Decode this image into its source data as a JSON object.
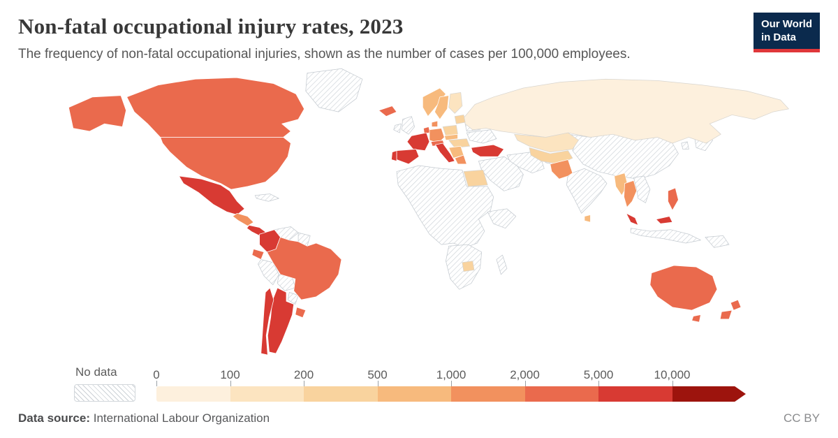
{
  "header": {
    "title": "Non-fatal occupational injury rates, 2023",
    "subtitle": "The frequency of non-fatal occupational injuries, shown as the number of cases per 100,000 employees.",
    "logo": {
      "line1": "Our World",
      "line2": "in Data",
      "bg": "#0b2a4d",
      "accent": "#e0373a"
    }
  },
  "legend": {
    "no_data_label": "No data",
    "ticks": [
      "0",
      "100",
      "200",
      "500",
      "1,000",
      "2,000",
      "5,000",
      "10,000"
    ]
  },
  "footer": {
    "source_label": "Data source:",
    "source_value": "International Labour Organization",
    "license": "CC BY"
  },
  "chart_data": {
    "type": "choropleth",
    "title": "Non-fatal occupational injury rates, 2023",
    "unit": "cases per 100,000 employees",
    "year": 2023,
    "legend_position": "bottom",
    "scale_ticks": [
      0,
      100,
      200,
      500,
      1000,
      2000,
      5000,
      10000
    ],
    "bins": [
      {
        "label": "0–100",
        "color": "#fdf0dd"
      },
      {
        "label": "100–200",
        "color": "#fce4c0"
      },
      {
        "label": "200–500",
        "color": "#f9d39e"
      },
      {
        "label": "500–1,000",
        "color": "#f7ba7d"
      },
      {
        "label": "1,000–2,000",
        "color": "#f2915e"
      },
      {
        "label": "2,000–5,000",
        "color": "#ea6a4d"
      },
      {
        "label": "5,000–10,000",
        "color": "#d83a33"
      },
      {
        "label": "10,000+",
        "color": "#9d140d"
      }
    ],
    "no_data": {
      "label": "No data",
      "pattern": "diagonal-hatch"
    },
    "regions": [
      {
        "key": "canada",
        "name": "Canada",
        "bin": 5
      },
      {
        "key": "united-states",
        "name": "United States",
        "bin": 5
      },
      {
        "key": "greenland",
        "name": "Greenland",
        "bin": null
      },
      {
        "key": "mexico",
        "name": "Mexico",
        "bin": 6
      },
      {
        "key": "central-america",
        "name": "Guatemala to Nicaragua",
        "bin": 4
      },
      {
        "key": "costa-rica-panama",
        "name": "Costa Rica & Panama",
        "bin": 6
      },
      {
        "key": "cuba",
        "name": "Cuba",
        "bin": null
      },
      {
        "key": "colombia",
        "name": "Colombia",
        "bin": 6
      },
      {
        "key": "venezuela",
        "name": "Venezuela",
        "bin": null
      },
      {
        "key": "guyanas",
        "name": "Guyanas",
        "bin": null
      },
      {
        "key": "ecuador",
        "name": "Ecuador",
        "bin": 5
      },
      {
        "key": "peru",
        "name": "Peru",
        "bin": null
      },
      {
        "key": "bolivia",
        "name": "Bolivia",
        "bin": null
      },
      {
        "key": "brazil",
        "name": "Brazil",
        "bin": 5
      },
      {
        "key": "paraguay",
        "name": "Paraguay",
        "bin": null
      },
      {
        "key": "uruguay",
        "name": "Uruguay",
        "bin": 5
      },
      {
        "key": "argentina",
        "name": "Argentina",
        "bin": 6
      },
      {
        "key": "chile",
        "name": "Chile",
        "bin": 6
      },
      {
        "key": "iceland",
        "name": "Iceland",
        "bin": 5
      },
      {
        "key": "united-kingdom",
        "name": "United Kingdom",
        "bin": null
      },
      {
        "key": "ireland",
        "name": "Ireland",
        "bin": null
      },
      {
        "key": "norway",
        "name": "Norway",
        "bin": 3
      },
      {
        "key": "sweden",
        "name": "Sweden",
        "bin": 3
      },
      {
        "key": "finland",
        "name": "Finland",
        "bin": 1
      },
      {
        "key": "denmark",
        "name": "Denmark",
        "bin": 4
      },
      {
        "key": "benelux",
        "name": "Benelux",
        "bin": 5
      },
      {
        "key": "germany",
        "name": "Germany",
        "bin": 4
      },
      {
        "key": "france",
        "name": "France",
        "bin": 6
      },
      {
        "key": "spain",
        "name": "Spain",
        "bin": 6
      },
      {
        "key": "portugal",
        "name": "Portugal",
        "bin": 6
      },
      {
        "key": "italy",
        "name": "Italy",
        "bin": 6
      },
      {
        "key": "alpine",
        "name": "Switzerland & Austria",
        "bin": 5
      },
      {
        "key": "poland",
        "name": "Poland",
        "bin": 2
      },
      {
        "key": "czech-slovakia",
        "name": "Czechia & Slovakia",
        "bin": 3
      },
      {
        "key": "hungary-romania",
        "name": "Hungary & Romania",
        "bin": 2
      },
      {
        "key": "balkans",
        "name": "Balkans",
        "bin": 3
      },
      {
        "key": "greece",
        "name": "Greece",
        "bin": 4
      },
      {
        "key": "baltics",
        "name": "Baltic states",
        "bin": 2
      },
      {
        "key": "belarus",
        "name": "Belarus",
        "bin": null
      },
      {
        "key": "ukraine",
        "name": "Ukraine",
        "bin": null
      },
      {
        "key": "russia",
        "name": "Russia",
        "bin": 0
      },
      {
        "key": "kazakhstan",
        "name": "Kazakhstan",
        "bin": 1
      },
      {
        "key": "central-asia",
        "name": "Central Asia",
        "bin": 2
      },
      {
        "key": "turkey",
        "name": "Turkey",
        "bin": 6
      },
      {
        "key": "middle-east",
        "name": "Middle East",
        "bin": null
      },
      {
        "key": "iran",
        "name": "Iran",
        "bin": null
      },
      {
        "key": "afghanistan",
        "name": "Afghanistan",
        "bin": null
      },
      {
        "key": "pakistan",
        "name": "Pakistan",
        "bin": 4
      },
      {
        "key": "india",
        "name": "India",
        "bin": null
      },
      {
        "key": "sri-lanka",
        "name": "Sri Lanka",
        "bin": 3
      },
      {
        "key": "china",
        "name": "China & Mongolia",
        "bin": null
      },
      {
        "key": "myanmar",
        "name": "Myanmar",
        "bin": 3
      },
      {
        "key": "thailand",
        "name": "Thailand",
        "bin": 4
      },
      {
        "key": "indochina",
        "name": "Vietnam, Laos & Cambodia",
        "bin": null
      },
      {
        "key": "malaysia",
        "name": "Malaysia",
        "bin": 6
      },
      {
        "key": "indonesia",
        "name": "Indonesia",
        "bin": null
      },
      {
        "key": "papua-new-guinea",
        "name": "Papua New Guinea",
        "bin": null
      },
      {
        "key": "philippines",
        "name": "Philippines",
        "bin": 5
      },
      {
        "key": "japan",
        "name": "Japan",
        "bin": null
      },
      {
        "key": "south-korea",
        "name": "South Korea",
        "bin": null
      },
      {
        "key": "north-africa",
        "name": "Northern & Western Africa",
        "bin": null
      },
      {
        "key": "egypt",
        "name": "Egypt",
        "bin": 2
      },
      {
        "key": "east-africa",
        "name": "Eastern Africa",
        "bin": null
      },
      {
        "key": "southern-africa",
        "name": "Southern Africa",
        "bin": null
      },
      {
        "key": "zimbabwe",
        "name": "Zimbabwe",
        "bin": 2
      },
      {
        "key": "madagascar",
        "name": "Madagascar",
        "bin": null
      },
      {
        "key": "australia",
        "name": "Australia",
        "bin": 5
      },
      {
        "key": "new-zealand",
        "name": "New Zealand",
        "bin": 5
      }
    ]
  }
}
